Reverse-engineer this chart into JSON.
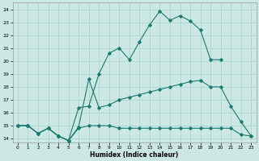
{
  "xlabel": "Humidex (Indice chaleur)",
  "bg_color": "#cce8e4",
  "grid_color": "#afd4cf",
  "line_color": "#1a7a6e",
  "xlim": [
    -0.5,
    23.5
  ],
  "ylim": [
    13.7,
    24.5
  ],
  "xticks": [
    0,
    1,
    2,
    3,
    4,
    5,
    6,
    7,
    8,
    9,
    10,
    11,
    12,
    13,
    14,
    15,
    16,
    17,
    18,
    19,
    20,
    21,
    22,
    23
  ],
  "yticks": [
    14,
    15,
    16,
    17,
    18,
    19,
    20,
    21,
    22,
    23,
    24
  ],
  "series1_x": [
    0,
    1,
    2,
    3,
    4,
    5,
    6,
    7,
    8,
    9,
    10,
    11,
    12,
    13,
    14,
    15,
    16,
    17,
    18,
    19,
    20,
    21,
    22,
    23
  ],
  "series1_y": [
    15.0,
    15.0,
    14.4,
    14.8,
    14.2,
    13.85,
    16.4,
    16.5,
    19.0,
    20.6,
    21.0,
    20.1,
    21.5,
    22.8,
    23.85,
    23.15,
    23.5,
    23.1,
    22.4,
    20.1,
    20.1,
    null,
    null,
    null
  ],
  "series2_x": [
    0,
    1,
    2,
    3,
    4,
    5,
    6,
    7,
    8,
    9,
    10,
    11,
    12,
    13,
    14,
    15,
    16,
    17,
    18,
    19,
    20,
    21,
    22,
    23
  ],
  "series2_y": [
    15.0,
    15.0,
    14.4,
    14.8,
    14.2,
    13.85,
    14.9,
    18.6,
    16.4,
    16.6,
    17.0,
    17.2,
    17.4,
    17.6,
    17.8,
    18.0,
    18.2,
    18.4,
    18.5,
    18.0,
    18.0,
    16.5,
    15.3,
    14.2
  ],
  "series3_x": [
    0,
    1,
    2,
    3,
    4,
    5,
    6,
    7,
    8,
    9,
    10,
    11,
    12,
    13,
    14,
    15,
    16,
    17,
    18,
    19,
    20,
    21,
    22,
    23
  ],
  "series3_y": [
    15.0,
    15.0,
    14.4,
    14.8,
    14.2,
    13.85,
    14.8,
    15.0,
    15.0,
    15.0,
    14.8,
    14.8,
    14.8,
    14.8,
    14.8,
    14.8,
    14.8,
    14.8,
    14.8,
    14.8,
    14.8,
    14.8,
    14.3,
    14.2
  ]
}
